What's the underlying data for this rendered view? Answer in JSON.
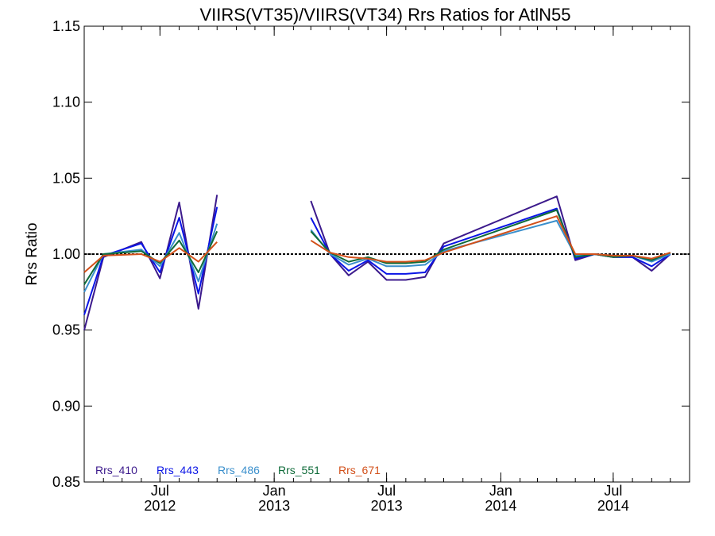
{
  "chart_data": {
    "type": "line",
    "title": "VIIRS(VT35)/VIIRS(VT34)  Rrs Ratios for AtlN55",
    "xlabel": "",
    "ylabel": "Rrs Ratio",
    "ylim": [
      0.85,
      1.15
    ],
    "xlim": [
      "2012-03-01",
      "2014-11-01"
    ],
    "y_ticks": [
      "0.85",
      "0.90",
      "0.95",
      "1.00",
      "1.05",
      "1.10",
      "1.15"
    ],
    "x_ticks": [
      {
        "month": "Jul",
        "year": "2012",
        "date": "2012-07-01"
      },
      {
        "month": "Jan",
        "year": "2013",
        "date": "2013-01-01"
      },
      {
        "month": "Jul",
        "year": "2013",
        "date": "2013-07-01"
      },
      {
        "month": "Jan",
        "year": "2014",
        "date": "2014-01-01"
      },
      {
        "month": "Jul",
        "year": "2014",
        "date": "2014-07-01"
      }
    ],
    "reference_line": 1.0,
    "grid": false,
    "legend_placement": "bottom-left",
    "x": [
      "2012-03-01",
      "2012-04-01",
      "2012-06-01",
      "2012-07-01",
      "2012-08-01",
      "2012-09-01",
      "2012-10-01",
      "2012-11-01",
      "2013-03-01",
      "2013-04-01",
      "2013-05-01",
      "2013-06-01",
      "2013-07-01",
      "2013-08-01",
      "2013-09-01",
      "2013-10-01",
      "2014-04-01",
      "2014-05-01",
      "2014-06-01",
      "2014-07-01",
      "2014-08-01",
      "2014-09-01",
      "2014-10-01",
      "2014-11-01"
    ],
    "series": [
      {
        "name": "Rrs_410",
        "color": "#3c1a8c",
        "values": [
          0.95,
          0.998,
          1.008,
          0.984,
          1.034,
          0.964,
          1.039,
          null,
          1.035,
          1.0,
          0.986,
          0.995,
          0.983,
          0.983,
          0.985,
          1.007,
          1.038,
          0.996,
          1.0,
          0.998,
          0.998,
          0.989,
          1.0,
          null
        ]
      },
      {
        "name": "Rrs_443",
        "color": "#0a14e6",
        "values": [
          0.96,
          0.999,
          1.007,
          0.988,
          1.024,
          0.974,
          1.031,
          null,
          1.024,
          1.0,
          0.989,
          0.996,
          0.987,
          0.987,
          0.988,
          1.005,
          1.03,
          0.997,
          1.0,
          0.998,
          0.998,
          0.992,
          1.0,
          null
        ]
      },
      {
        "name": "Rrs_486",
        "color": "#3a8fcc",
        "values": [
          0.975,
          1.0,
          1.003,
          0.992,
          1.014,
          0.982,
          1.02,
          null,
          1.016,
          1.0,
          0.993,
          0.997,
          0.992,
          0.992,
          0.993,
          1.002,
          1.022,
          0.999,
          1.0,
          0.999,
          0.999,
          0.995,
          1.0,
          null
        ]
      },
      {
        "name": "Rrs_551",
        "color": "#0f6b3a",
        "values": [
          0.98,
          1.0,
          1.002,
          0.994,
          1.009,
          0.988,
          1.015,
          null,
          1.015,
          1.001,
          0.995,
          0.998,
          0.994,
          0.994,
          0.995,
          1.003,
          1.029,
          0.998,
          1.0,
          0.998,
          0.999,
          0.996,
          1.001,
          null
        ]
      },
      {
        "name": "Rrs_671",
        "color": "#d2501a",
        "values": [
          0.988,
          0.999,
          1.0,
          0.995,
          1.004,
          0.995,
          1.008,
          null,
          1.009,
          1.001,
          0.998,
          0.997,
          0.995,
          0.995,
          0.996,
          1.001,
          1.025,
          1.0,
          1.0,
          0.999,
          0.999,
          0.997,
          1.001,
          null
        ]
      }
    ]
  }
}
